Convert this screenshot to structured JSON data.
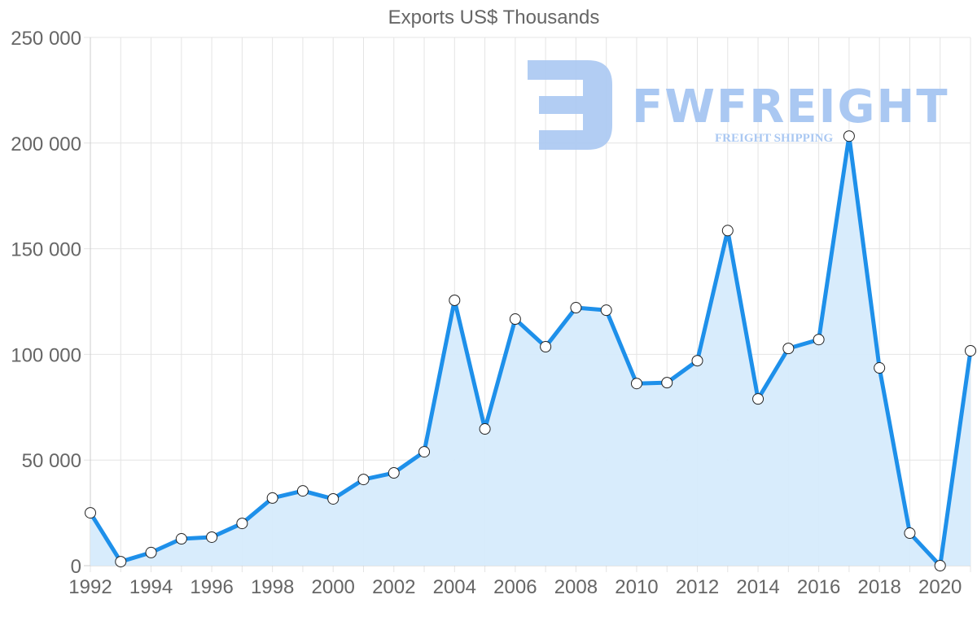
{
  "chart_data": {
    "type": "line",
    "title": "Exports US$ Thousands",
    "xlabel": "",
    "ylabel": "",
    "x": [
      1992,
      1993,
      1994,
      1995,
      1996,
      1997,
      1998,
      1999,
      2000,
      2001,
      2002,
      2003,
      2004,
      2005,
      2006,
      2007,
      2008,
      2009,
      2010,
      2011,
      2012,
      2013,
      2014,
      2015,
      2016,
      2017,
      2018,
      2019,
      2020,
      2021
    ],
    "series": [
      {
        "name": "Exports US$ Thousands",
        "values": [
          25000,
          1900,
          6200,
          12700,
          13500,
          20000,
          32000,
          35400,
          31600,
          40800,
          43900,
          53900,
          125600,
          64700,
          116700,
          103600,
          122100,
          120900,
          86200,
          86600,
          97000,
          158600,
          78900,
          102800,
          107000,
          203300,
          93600,
          15400,
          0,
          101700
        ],
        "color": "#1e90ea",
        "fill": "#d6ebfc"
      }
    ],
    "ylim": [
      0,
      250000
    ],
    "yticks": [
      "0",
      "50 000",
      "100 000",
      "150 000",
      "200 000",
      "250 000"
    ],
    "xticks": [
      "1992",
      "1994",
      "1996",
      "1998",
      "2000",
      "2002",
      "2004",
      "2006",
      "2008",
      "2010",
      "2012",
      "2014",
      "2016",
      "2018",
      "2020"
    ],
    "grid": true,
    "legend": "none"
  },
  "watermark": {
    "brand": "FWFREIGHT",
    "tagline": "FREIGHT SHIPPING",
    "color": "#aac8f2"
  }
}
